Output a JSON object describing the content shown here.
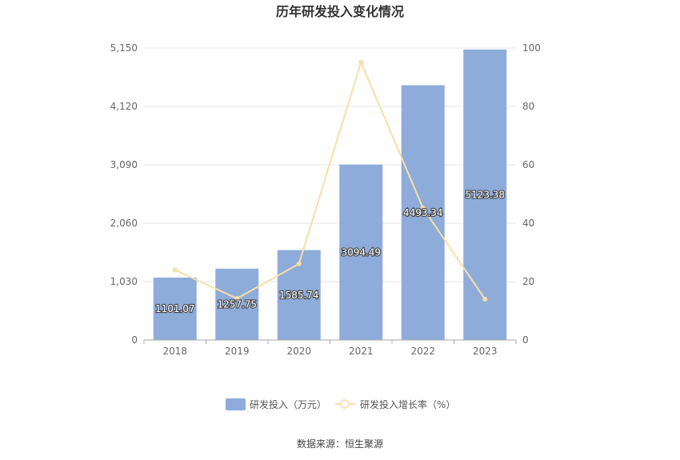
{
  "chart_data": {
    "type": "bar",
    "title": "历年研发投入变化情况",
    "categories": [
      "2018",
      "2019",
      "2020",
      "2021",
      "2022",
      "2023"
    ],
    "series": [
      {
        "name": "研发投入（万元）",
        "type": "bar",
        "axis": "left",
        "color": "#8eacda",
        "values": [
          1101.07,
          1257.75,
          1585.74,
          3094.49,
          4493.34,
          5123.38
        ],
        "labels": [
          "1101.07",
          "1257.75",
          "1585.74",
          "3094.49",
          "4493.34",
          "5123.38"
        ]
      },
      {
        "name": "研发投入增长率（%）",
        "type": "line",
        "axis": "right",
        "color": "#fadea6",
        "values": [
          24,
          14.2,
          26.1,
          95.1,
          45.2,
          14.0
        ]
      }
    ],
    "y_left": {
      "ylim": [
        0,
        5150
      ],
      "ticks": [
        "0",
        "1,030",
        "2,060",
        "3,090",
        "4,120",
        "5,150"
      ]
    },
    "y_right": {
      "ylim": [
        0,
        100
      ],
      "ticks": [
        "0",
        "20",
        "40",
        "60",
        "80",
        "100"
      ]
    },
    "grid": true,
    "legend_position": "bottom-center"
  },
  "footer": {
    "source": "数据来源：恒生聚源"
  }
}
